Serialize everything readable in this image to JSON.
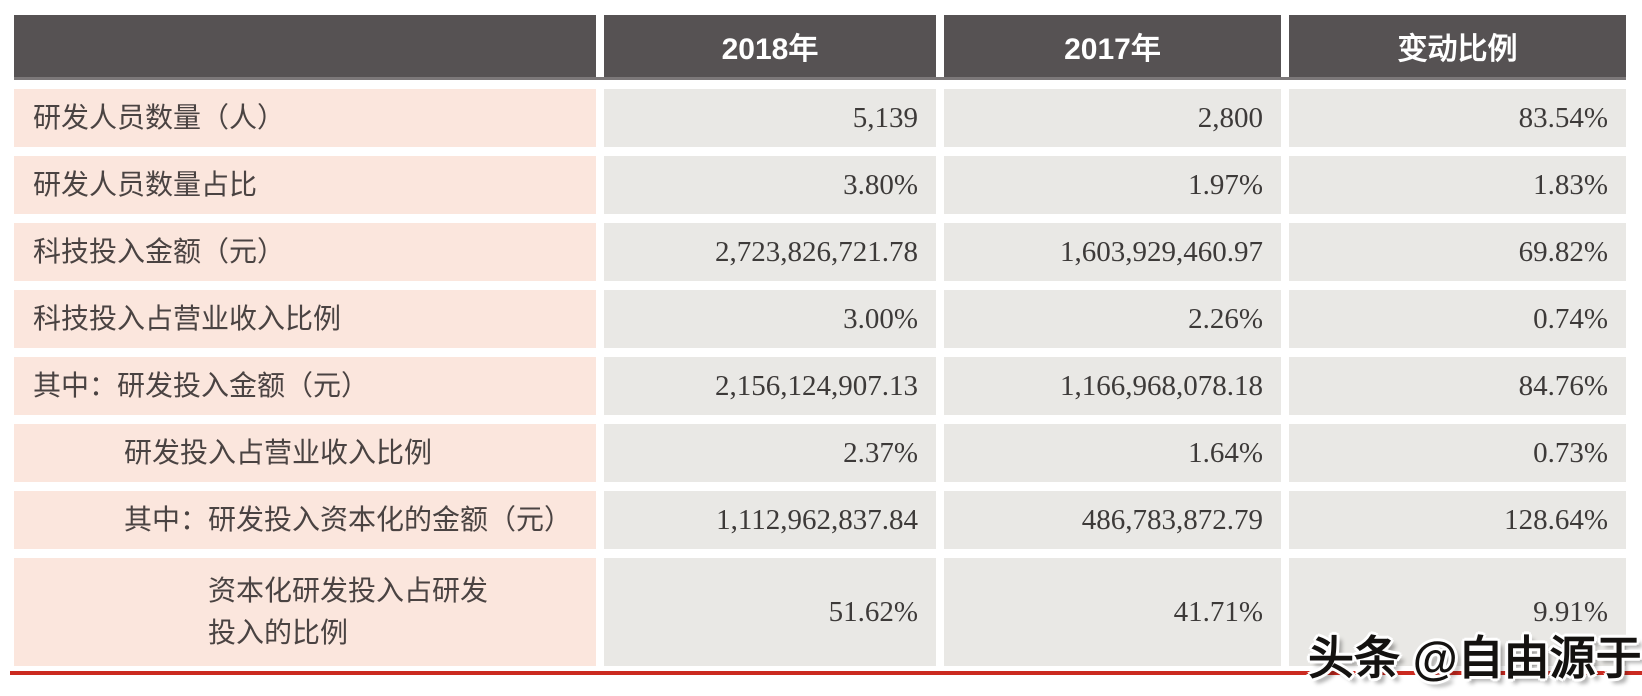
{
  "chart_data": {
    "type": "table",
    "columns": [
      "",
      "2018年",
      "2017年",
      "变动比例"
    ],
    "rows": [
      {
        "label": "研发人员数量（人）",
        "y2018": "5,139",
        "y2017": "2,800",
        "change": "83.54%"
      },
      {
        "label": "研发人员数量占比",
        "y2018": "3.80%",
        "y2017": "1.97%",
        "change": "1.83%"
      },
      {
        "label": "科技投入金额（元）",
        "y2018": "2,723,826,721.78",
        "y2017": "1,603,929,460.97",
        "change": "69.82%"
      },
      {
        "label": "科技投入占营业收入比例",
        "y2018": "3.00%",
        "y2017": "2.26%",
        "change": "0.74%"
      },
      {
        "label": "其中：研发投入金额（元）",
        "y2018": "2,156,124,907.13",
        "y2017": "1,166,968,078.18",
        "change": "84.76%"
      },
      {
        "label": "研发投入占营业收入比例",
        "y2018": "2.37%",
        "y2017": "1.64%",
        "change": "0.73%"
      },
      {
        "label": "其中：研发投入资本化的金额（元）",
        "y2018": "1,112,962,837.84",
        "y2017": "486,783,872.79",
        "change": "128.64%"
      },
      {
        "label": "资本化研发投入占研发\n投入的比例",
        "y2018": "51.62%",
        "y2017": "41.71%",
        "change": "9.91%"
      }
    ]
  },
  "watermark": {
    "text": "头条 @自由源于"
  },
  "colors": {
    "header_bg": "#565253",
    "label_bg": "#fbe6dd",
    "value_bg": "#e9e8e5",
    "divider": "#7c7879",
    "accent_line": "#cb2a20",
    "header_text": "#ffffff",
    "body_text": "#3d3a39"
  }
}
